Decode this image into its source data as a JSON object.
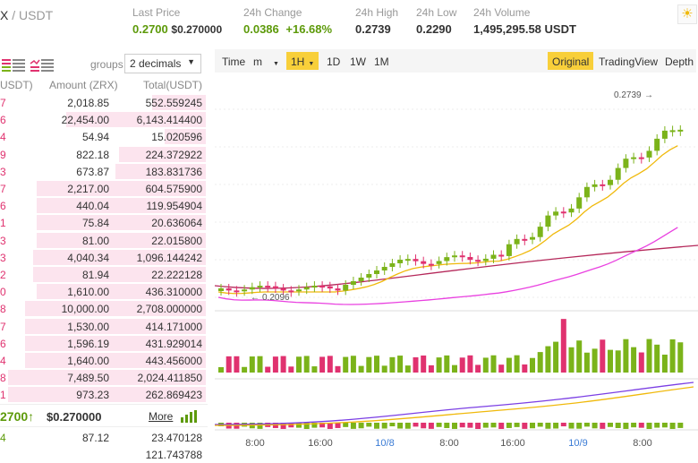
{
  "header": {
    "pair_base": "X",
    "pair_quote": " / USDT",
    "stats": [
      {
        "label": "Last Price",
        "value_main": "0.2700",
        "value_sub": "$0.270000"
      },
      {
        "label": "24h Change",
        "value_main": "0.0386",
        "value_sub": "+16.68%"
      },
      {
        "label": "24h High",
        "value_main": "0.2739"
      },
      {
        "label": "24h Low",
        "value_main": "0.2290"
      },
      {
        "label": "24h Volume",
        "value_main": "1,495,295.58 USDT"
      }
    ],
    "theme_icon": "sun-icon"
  },
  "orderbook": {
    "groups_label": "groups",
    "decimals_value": "2 decimals",
    "col_price": "USDT)",
    "col_amount": "Amount (ZRX)",
    "col_total": "Total(USDT)",
    "asks": [
      {
        "p": "7",
        "a": "2,018.85",
        "t": "552.559245",
        "f": 0.26
      },
      {
        "p": "6",
        "a": "22,454.00",
        "t": "6,143.414400",
        "f": 0.68
      },
      {
        "p": "4",
        "a": "54.94",
        "t": "15.020596",
        "f": 0.2
      },
      {
        "p": "9",
        "a": "822.18",
        "t": "224.372922",
        "f": 0.42
      },
      {
        "p": "3",
        "a": "673.87",
        "t": "183.831736",
        "f": 0.44
      },
      {
        "p": "7",
        "a": "2,217.00",
        "t": "604.575900",
        "f": 0.82
      },
      {
        "p": "6",
        "a": "440.04",
        "t": "119.954904",
        "f": 0.82
      },
      {
        "p": "1",
        "a": "75.84",
        "t": "20.636064",
        "f": 0.82
      },
      {
        "p": "3",
        "a": "81.00",
        "t": "22.015800",
        "f": 0.82
      },
      {
        "p": "3",
        "a": "4,040.34",
        "t": "1,096.144242",
        "f": 0.84
      },
      {
        "p": "2",
        "a": "81.94",
        "t": "22.222128",
        "f": 0.84
      },
      {
        "p": "0",
        "a": "1,610.00",
        "t": "436.310000",
        "f": 0.82
      },
      {
        "p": "8",
        "a": "10,000.00",
        "t": "2,708.000000",
        "f": 0.88
      },
      {
        "p": "7",
        "a": "1,530.00",
        "t": "414.171000",
        "f": 0.88
      },
      {
        "p": "6",
        "a": "1,596.19",
        "t": "431.929014",
        "f": 0.88
      },
      {
        "p": "4",
        "a": "1,640.00",
        "t": "443.456000",
        "f": 0.88
      },
      {
        "p": "8",
        "a": "7,489.50",
        "t": "2,024.411850",
        "f": 0.96
      },
      {
        "p": "1",
        "a": "973.23",
        "t": "262.869423",
        "f": 0.96
      }
    ],
    "last_price": "2700",
    "last_arrow": "↑",
    "last_usd": "$0.270000",
    "more_label": "More",
    "bids": [
      {
        "p": "4",
        "a": "87.12",
        "t": "23.470128"
      },
      {
        "p": "",
        "a": "",
        "t": "121.743788"
      }
    ]
  },
  "chart_toolbar": {
    "left": [
      "Time",
      "m",
      "1H",
      "1D",
      "1W",
      "1M"
    ],
    "active": "1H",
    "right": [
      "Original",
      "TradingView",
      "Depth"
    ],
    "active_right": "Original"
  },
  "chart_data": {
    "type": "candlestick",
    "high_label": "0.2739",
    "low_label": "0.2096",
    "x_tick_labels": [
      "8:00",
      "16:00",
      "10/8",
      "8:00",
      "16:00",
      "10/9",
      "8:00"
    ],
    "colors": {
      "up": "#7bb31a",
      "down": "#e0326f",
      "ma_short": "#f0b90b",
      "ma_mid": "#e940e0",
      "ma_long": "#b5285a"
    }
  }
}
